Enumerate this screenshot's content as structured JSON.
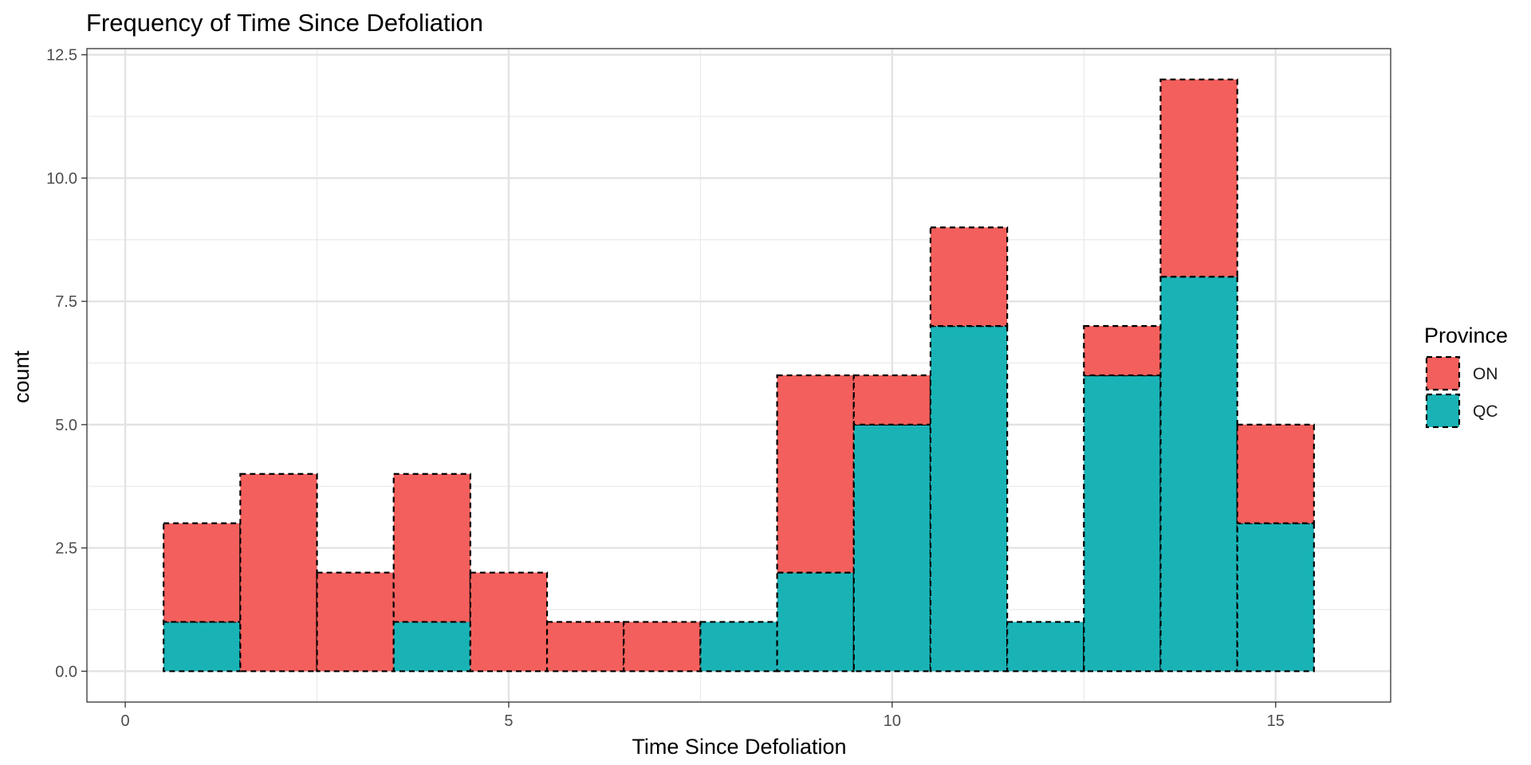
{
  "chart_data": {
    "type": "bar",
    "stacked": true,
    "title": "Frequency of Time Since Defoliation",
    "xlabel": "Time Since Defoliation",
    "ylabel": "count",
    "x": [
      1,
      2,
      3,
      4,
      5,
      6,
      7,
      8,
      9,
      10,
      11,
      12,
      13,
      14,
      15
    ],
    "series": [
      {
        "name": "QC",
        "color": "#19b3b6",
        "values": [
          1,
          0,
          0,
          1,
          0,
          0,
          0,
          1,
          2,
          5,
          7,
          1,
          6,
          8,
          3
        ]
      },
      {
        "name": "ON",
        "color": "#f35f5c",
        "values": [
          2,
          4,
          2,
          3,
          2,
          1,
          1,
          0,
          4,
          1,
          2,
          0,
          1,
          4,
          2
        ]
      }
    ],
    "xlim": [
      -0.5,
      16.5
    ],
    "ylim": [
      -0.625,
      12.625
    ],
    "x_ticks": [
      0,
      5,
      10,
      15
    ],
    "x_tick_labels": [
      "0",
      "5",
      "10",
      "15"
    ],
    "y_ticks": [
      0,
      2.5,
      5,
      7.5,
      10,
      12.5
    ],
    "y_tick_labels": [
      "0.0",
      "2.5",
      "5.0",
      "7.5",
      "10.0",
      "12.5"
    ],
    "grid": true,
    "bar_outline": "dashed black",
    "legend": {
      "title": "Province",
      "position": "right",
      "entries": [
        "ON",
        "QC"
      ]
    }
  }
}
